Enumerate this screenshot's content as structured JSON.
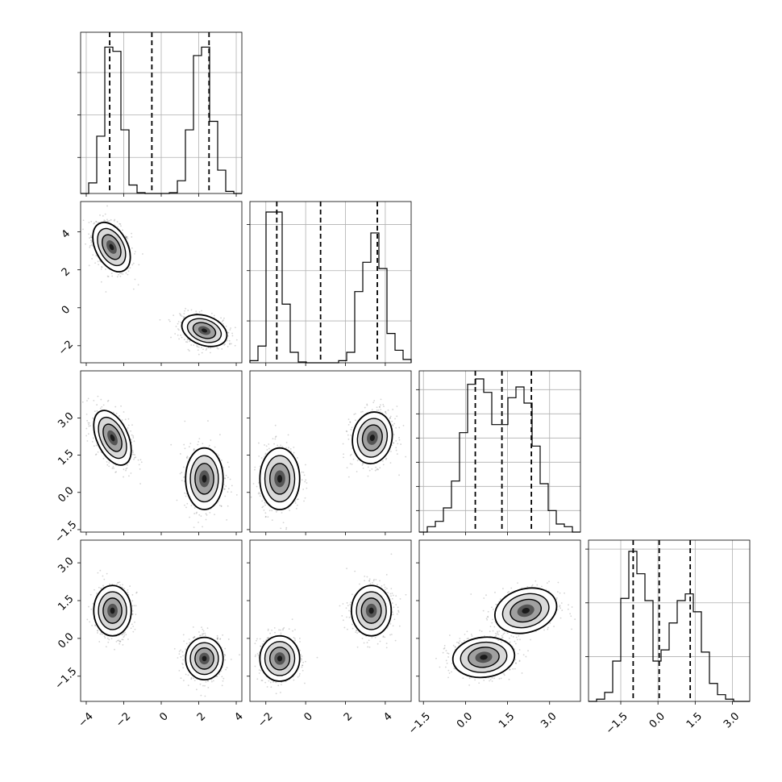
{
  "chart_data": {
    "type": "corner",
    "grid": true,
    "variables": 4,
    "colors": {
      "line": "#000000",
      "grid": "#b0b0b0",
      "points": "#555555"
    },
    "axes": {
      "x": [
        {
          "range": [
            -4.3,
            4.3
          ],
          "ticks": [
            -4,
            -2,
            0,
            2,
            4
          ],
          "tick_labels": [
            "−4",
            "−2",
            "0",
            "2",
            "4"
          ]
        },
        {
          "range": [
            -2.8,
            5.3
          ],
          "ticks": [
            -2,
            0,
            2,
            4
          ],
          "tick_labels": [
            "−2",
            "0",
            "2",
            "4"
          ]
        },
        {
          "range": [
            -1.65,
            4.1
          ],
          "ticks": [
            -1.5,
            0,
            1.5,
            3
          ],
          "tick_labels": [
            "−1.5",
            "0.0",
            "1.5",
            "3.0"
          ]
        },
        {
          "range": [
            -2.8,
            3.7
          ],
          "ticks": [
            -1.5,
            0,
            1.5,
            3
          ],
          "tick_labels": [
            "−1.5",
            "0.0",
            "1.5",
            "3.0"
          ]
        }
      ],
      "y": [
        null,
        {
          "range": [
            -2.9,
            5.6
          ],
          "ticks": [
            -2,
            0,
            2,
            4
          ],
          "tick_labels": [
            "−2",
            "0",
            "2",
            "4"
          ]
        },
        {
          "range": [
            -1.6,
            4.9
          ],
          "ticks": [
            -1.5,
            0,
            1.5,
            3
          ],
          "tick_labels": [
            "−1.5",
            "0.0",
            "1.5",
            "3.0"
          ]
        },
        {
          "range": [
            -2.5,
            3.9
          ],
          "ticks": [
            -1.5,
            0,
            1.5,
            3
          ],
          "tick_labels": [
            "−1.5",
            "0.0",
            "1.5",
            "3.0"
          ]
        }
      ]
    },
    "histograms": [
      {
        "variable": 0,
        "bin_edges": [
          -4.3,
          -3.87,
          -3.44,
          -3.01,
          -2.58,
          -2.15,
          -1.72,
          -1.29,
          -0.86,
          -0.43,
          0,
          0.43,
          0.86,
          1.29,
          1.72,
          2.15,
          2.58,
          3.01,
          3.44,
          3.87,
          4.3
        ],
        "counts": [
          0,
          25,
          135,
          345,
          335,
          150,
          20,
          2,
          0,
          0,
          0,
          2,
          30,
          150,
          325,
          345,
          170,
          55,
          5,
          0
        ],
        "ymax": 380,
        "y_grid": [
          85,
          185,
          285
        ],
        "quantiles": [
          -2.75,
          -0.5,
          2.55
        ]
      },
      {
        "variable": 1,
        "bin_edges": [
          -2.8,
          -2.395,
          -1.99,
          -1.585,
          -1.18,
          -0.775,
          -0.37,
          0.035,
          0.44,
          0.845,
          1.25,
          1.655,
          2.06,
          2.465,
          2.87,
          3.275,
          3.68,
          4.085,
          4.49,
          4.895,
          5.3
        ],
        "counts": [
          5,
          40,
          360,
          360,
          140,
          25,
          2,
          0,
          0,
          0,
          0,
          5,
          25,
          170,
          240,
          310,
          225,
          70,
          30,
          8
        ],
        "ymax": 385,
        "y_grid": [
          100,
          220,
          330
        ],
        "quantiles": [
          -1.45,
          0.75,
          3.6
        ]
      },
      {
        "variable": 2,
        "bin_edges": [
          -1.65,
          -1.3625,
          -1.075,
          -0.7875,
          -0.5,
          -0.2125,
          0.075,
          0.3625,
          0.65,
          0.9375,
          1.225,
          1.5125,
          1.8,
          2.0875,
          2.375,
          2.6625,
          2.95,
          3.2375,
          3.525,
          3.8125,
          4.1
        ],
        "counts": [
          0,
          10,
          20,
          45,
          95,
          185,
          275,
          285,
          260,
          200,
          200,
          250,
          270,
          240,
          160,
          90,
          40,
          15,
          10,
          0
        ],
        "ymax": 300,
        "y_grid": [
          40,
          85,
          130,
          175,
          220,
          265
        ],
        "quantiles": [
          0.35,
          1.3,
          2.35
        ]
      },
      {
        "variable": 3,
        "bin_edges": [
          -2.8,
          -2.475,
          -2.15,
          -1.825,
          -1.5,
          -1.175,
          -0.85,
          -0.525,
          -0.2,
          0.125,
          0.45,
          0.775,
          1.1,
          1.425,
          1.75,
          2.075,
          2.4,
          2.725,
          3.05,
          3.375,
          3.7
        ],
        "counts": [
          0,
          5,
          20,
          90,
          230,
          335,
          285,
          225,
          90,
          115,
          175,
          225,
          240,
          200,
          110,
          40,
          15,
          5,
          0,
          0
        ],
        "ymax": 360,
        "y_grid": [
          100,
          220,
          340
        ],
        "quantiles": [
          -1.0,
          0.05,
          1.3
        ]
      }
    ],
    "panels": [
      {
        "xvar": 0,
        "yvar": 1,
        "clusters": [
          {
            "cx": -2.65,
            "cy": 3.2,
            "sx": 0.5,
            "sy": 0.65,
            "rho": -0.4
          },
          {
            "cx": 2.3,
            "cy": -1.2,
            "sx": 0.6,
            "sy": 0.42,
            "rho": -0.3
          }
        ]
      },
      {
        "xvar": 0,
        "yvar": 2,
        "clusters": [
          {
            "cx": -2.6,
            "cy": 2.2,
            "sx": 0.5,
            "sy": 0.55,
            "rho": -0.45
          },
          {
            "cx": 2.3,
            "cy": 0.55,
            "sx": 0.5,
            "sy": 0.62,
            "rho": 0.0
          }
        ]
      },
      {
        "xvar": 1,
        "yvar": 2,
        "clusters": [
          {
            "cx": -1.3,
            "cy": 0.55,
            "sx": 0.5,
            "sy": 0.62,
            "rho": 0.0
          },
          {
            "cx": 3.35,
            "cy": 2.2,
            "sx": 0.5,
            "sy": 0.52,
            "rho": 0.1
          }
        ]
      },
      {
        "xvar": 0,
        "yvar": 3,
        "clusters": [
          {
            "cx": -2.6,
            "cy": 1.1,
            "sx": 0.5,
            "sy": 0.5,
            "rho": 0.0
          },
          {
            "cx": 2.3,
            "cy": -0.8,
            "sx": 0.5,
            "sy": 0.42,
            "rho": 0.0
          }
        ]
      },
      {
        "xvar": 1,
        "yvar": 3,
        "clusters": [
          {
            "cx": -1.3,
            "cy": -0.8,
            "sx": 0.5,
            "sy": 0.45,
            "rho": 0.0
          },
          {
            "cx": 3.3,
            "cy": 1.1,
            "sx": 0.5,
            "sy": 0.5,
            "rho": 0.0
          }
        ]
      },
      {
        "xvar": 2,
        "yvar": 3,
        "clusters": [
          {
            "cx": 0.65,
            "cy": -0.75,
            "sx": 0.55,
            "sy": 0.4,
            "rho": 0.1
          },
          {
            "cx": 2.15,
            "cy": 1.1,
            "sx": 0.55,
            "sy": 0.45,
            "rho": 0.2
          }
        ]
      }
    ]
  }
}
